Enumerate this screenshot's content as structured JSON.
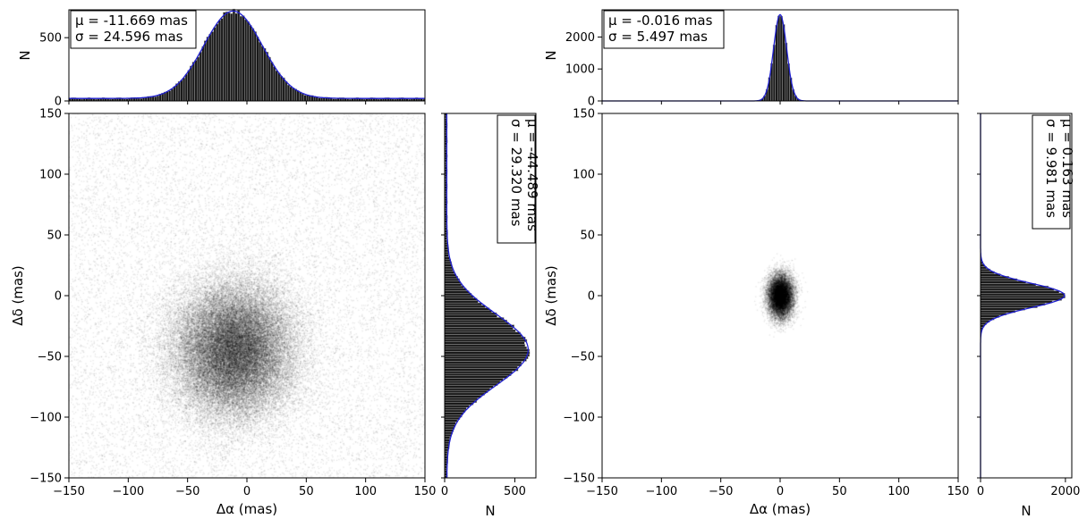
{
  "chart_data": [
    {
      "type": "scatter",
      "panel": "left",
      "xlabel": "Δα (mas)",
      "ylabel": "Δδ (mas)",
      "xlim": [
        -150,
        150
      ],
      "ylim": [
        -150,
        150
      ],
      "xticks": [
        -150,
        -100,
        -50,
        0,
        50,
        100,
        150
      ],
      "yticks": [
        -150,
        -100,
        -50,
        0,
        50,
        100,
        150
      ],
      "xtick_labels": [
        "−150",
        "−100",
        "−50",
        "0",
        "50",
        "100",
        "150"
      ],
      "ytick_labels": [
        "−150",
        "−100",
        "−50",
        "0",
        "50",
        "100",
        "150"
      ],
      "cloud_center": [
        -11.669,
        -44.489
      ],
      "cloud_sigma": [
        24.596,
        29.32
      ],
      "grid": false,
      "top_histogram": {
        "ylabel": "N",
        "ylim": [
          0,
          720
        ],
        "yticks": [
          0,
          500
        ],
        "ytick_labels": [
          "0",
          "500"
        ],
        "peak": 690,
        "mu": -11.669,
        "sigma": 24.596,
        "background": 20,
        "stat_lines": [
          "μ = -11.669 mas",
          "σ = 24.596 mas"
        ]
      },
      "right_histogram": {
        "xlabel": "N",
        "xlim": [
          0,
          650
        ],
        "xticks": [
          0,
          500
        ],
        "xtick_labels": [
          "0",
          "500"
        ],
        "peak": 580,
        "mu": -44.489,
        "sigma": 29.32,
        "background": 15,
        "stat_lines": [
          "μ = -44.489 mas",
          "σ = 29.320 mas"
        ]
      }
    },
    {
      "type": "scatter",
      "panel": "right",
      "xlabel": "Δα (mas)",
      "ylabel": "Δδ (mas)",
      "xlim": [
        -150,
        150
      ],
      "ylim": [
        -150,
        150
      ],
      "xticks": [
        -150,
        -100,
        -50,
        0,
        50,
        100,
        150
      ],
      "yticks": [
        -150,
        -100,
        -50,
        0,
        50,
        100,
        150
      ],
      "xtick_labels": [
        "−150",
        "−100",
        "−50",
        "0",
        "50",
        "100",
        "150"
      ],
      "ytick_labels": [
        "−150",
        "−100",
        "−50",
        "0",
        "50",
        "100",
        "150"
      ],
      "cloud_center": [
        -0.016,
        0.163
      ],
      "cloud_sigma": [
        5.497,
        9.981
      ],
      "grid": false,
      "top_histogram": {
        "ylabel": "N",
        "ylim": [
          0,
          2850
        ],
        "yticks": [
          0,
          1000,
          2000
        ],
        "ytick_labels": [
          "0",
          "1000",
          "2000"
        ],
        "peak": 2700,
        "mu": -0.016,
        "sigma": 5.497,
        "background": 0,
        "stat_lines": [
          "μ = -0.016 mas",
          "σ = 5.497 mas"
        ]
      },
      "right_histogram": {
        "xlabel": "N",
        "xlim": [
          0,
          2150
        ],
        "xticks": [
          0,
          2000
        ],
        "xtick_labels": [
          "0",
          "2000"
        ],
        "peak": 1980,
        "mu": 0.163,
        "sigma": 9.981,
        "background": 0,
        "stat_lines": [
          "μ = 0.163 mas",
          "σ = 9.981 mas"
        ]
      }
    }
  ]
}
